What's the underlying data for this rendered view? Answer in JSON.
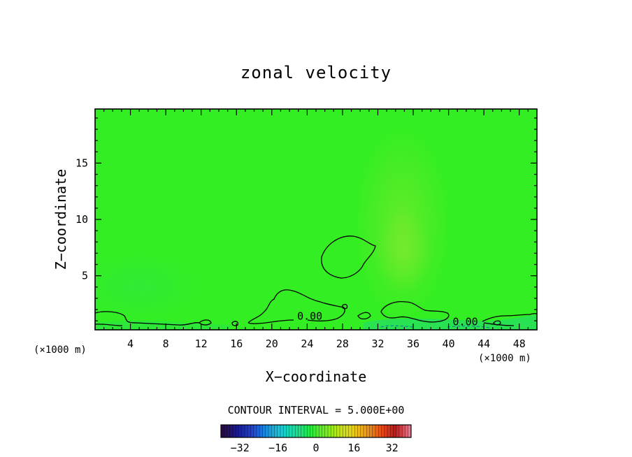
{
  "chart_data": {
    "type": "heatmap",
    "title": "zonal velocity",
    "xlabel": "X−coordinate",
    "ylabel": "Z−coordinate",
    "x_unit": "(×1000 m)",
    "y_unit": "(×1000 m)",
    "xlim": [
      0,
      50
    ],
    "ylim": [
      0.2,
      19.8
    ],
    "x_ticks": [
      4,
      8,
      12,
      16,
      20,
      24,
      28,
      32,
      36,
      40,
      44,
      48
    ],
    "y_ticks": [
      5,
      10,
      15
    ],
    "x_tick_labels": [
      "4",
      "8",
      "12",
      "16",
      "20",
      "24",
      "28",
      "32",
      "36",
      "40",
      "44",
      "48"
    ],
    "y_tick_labels": [
      "5",
      "10",
      "15"
    ],
    "contour_interval_text": "CONTOUR INTERVAL = 5.000E+00",
    "contour_labels": [
      {
        "text": "0.00",
        "x": 24.3,
        "z": 1.4
      },
      {
        "text": "0.00",
        "x": 41.9,
        "z": 0.9
      }
    ],
    "field_color": "#33ee22",
    "colorbar": {
      "min": -40,
      "max": 40,
      "tick_values": [
        -32,
        -16,
        0,
        16,
        32
      ],
      "tick_labels": [
        "−32",
        "−16",
        "0",
        "16",
        "32"
      ],
      "colors": [
        "#2a0a4a",
        "#1a1a8a",
        "#1f3fd0",
        "#1a8ae0",
        "#19c8d8",
        "#18e0a0",
        "#22e84a",
        "#66ee22",
        "#b8e81c",
        "#e8d41a",
        "#ee9a18",
        "#e85018",
        "#c01818",
        "#e07a90"
      ]
    }
  }
}
